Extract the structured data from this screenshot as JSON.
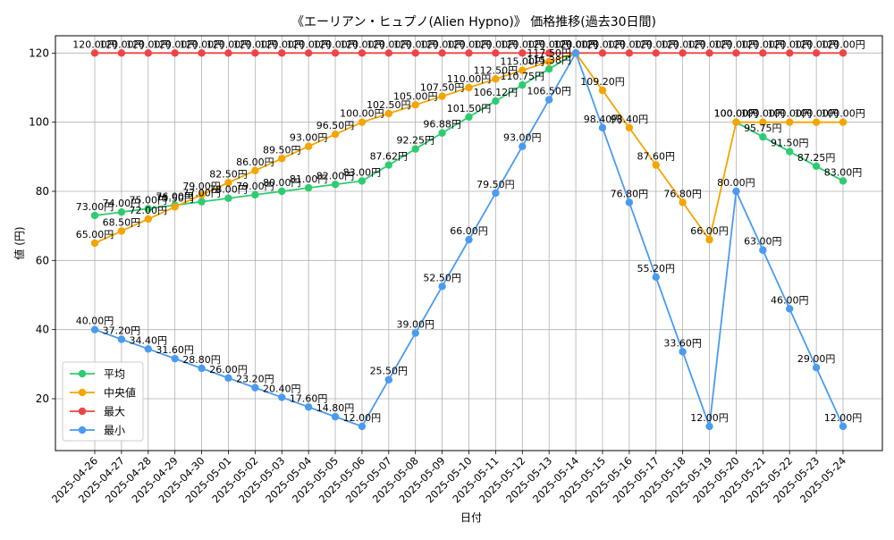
{
  "chart_data": {
    "type": "line",
    "title": "《エーリアン・ヒュプノ(Alien Hypno)》 価格推移(過去30日間)",
    "xlabel": "日付",
    "ylabel": "値 (円)",
    "ylim": [
      5,
      125
    ],
    "yticks": [
      20,
      40,
      60,
      80,
      100,
      120
    ],
    "grid": true,
    "legend_position": "lower-left",
    "label_suffix": "円",
    "categories": [
      "2025-04-26",
      "2025-04-27",
      "2025-04-28",
      "2025-04-29",
      "2025-04-30",
      "2025-05-01",
      "2025-05-02",
      "2025-05-03",
      "2025-05-04",
      "2025-05-05",
      "2025-05-06",
      "2025-05-07",
      "2025-05-08",
      "2025-05-09",
      "2025-05-10",
      "2025-05-11",
      "2025-05-12",
      "2025-05-13",
      "2025-05-14",
      "2025-05-15",
      "2025-05-16",
      "2025-05-17",
      "2025-05-18",
      "2025-05-19",
      "2025-05-20",
      "2025-05-21",
      "2025-05-22",
      "2025-05-23",
      "2025-05-24"
    ],
    "series": [
      {
        "name": "平均",
        "color": "#2ecc71",
        "values": [
          73.0,
          74.0,
          75.0,
          76.0,
          77.0,
          78.0,
          79.0,
          80.0,
          81.0,
          82.0,
          83.0,
          87.62,
          92.25,
          96.88,
          101.5,
          106.12,
          110.75,
          115.38,
          120.0,
          null,
          null,
          null,
          null,
          null,
          100.0,
          95.75,
          91.5,
          87.25,
          83.0
        ]
      },
      {
        "name": "中央値",
        "color": "#f5a400",
        "values": [
          65.0,
          68.5,
          72.0,
          75.5,
          79.0,
          82.5,
          86.0,
          89.5,
          93.0,
          96.5,
          100.0,
          102.5,
          105.0,
          107.5,
          110.0,
          112.5,
          115.0,
          117.5,
          120.0,
          109.2,
          98.4,
          87.6,
          76.8,
          66.0,
          100.0,
          100.0,
          100.0,
          100.0,
          100.0
        ]
      },
      {
        "name": "最大",
        "color": "#ef4444",
        "values": [
          120.0,
          120.0,
          120.0,
          120.0,
          120.0,
          120.0,
          120.0,
          120.0,
          120.0,
          120.0,
          120.0,
          120.0,
          120.0,
          120.0,
          120.0,
          120.0,
          120.0,
          120.0,
          120.0,
          120.0,
          120.0,
          120.0,
          120.0,
          120.0,
          120.0,
          120.0,
          120.0,
          120.0,
          120.0
        ]
      },
      {
        "name": "最小",
        "color": "#4a9bf0",
        "values": [
          40.0,
          37.2,
          34.4,
          31.6,
          28.8,
          26.0,
          23.2,
          20.4,
          17.6,
          14.8,
          12.0,
          25.5,
          39.0,
          52.5,
          66.0,
          79.5,
          93.0,
          106.5,
          120.0,
          98.4,
          76.8,
          55.2,
          33.6,
          12.0,
          80.0,
          63.0,
          46.0,
          29.0,
          12.0
        ]
      }
    ]
  }
}
